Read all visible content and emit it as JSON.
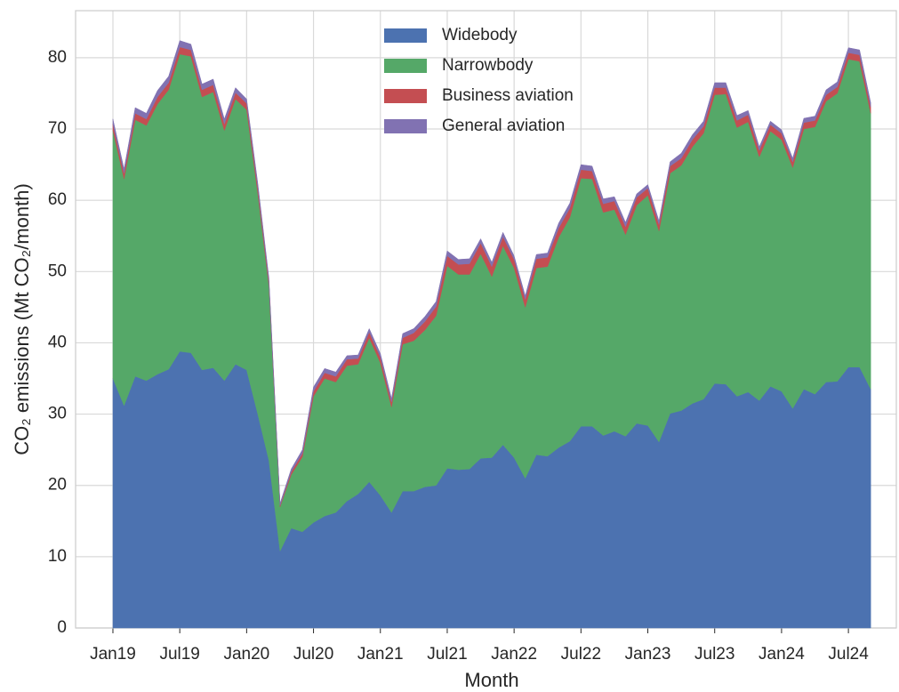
{
  "chart_data": {
    "type": "stacked_area",
    "xlabel": "Month",
    "ylabel": "CO₂ emissions (Mt CO₂/month)",
    "categories": [
      "Jan19",
      null,
      null,
      null,
      null,
      null,
      "Jul19",
      null,
      null,
      null,
      null,
      null,
      "Jan20",
      null,
      null,
      null,
      null,
      null,
      "Jul20",
      null,
      null,
      null,
      null,
      null,
      "Jan21",
      null,
      null,
      null,
      null,
      null,
      "Jul21",
      null,
      null,
      null,
      null,
      null,
      "Jan22",
      null,
      null,
      null,
      null,
      null,
      "Jul22",
      null,
      null,
      null,
      null,
      null,
      "Jan23",
      null,
      null,
      null,
      null,
      null,
      "Jul23",
      null,
      null,
      null,
      null,
      null,
      "Jan24",
      null,
      null,
      null,
      null,
      null,
      "Jul24",
      null,
      null
    ],
    "series": [
      {
        "name": "Widebody",
        "color": "#4c72b0",
        "values": [
          35,
          31.2,
          35.3,
          34.7,
          35.6,
          36.3,
          38.8,
          38.6,
          36.2,
          36.5,
          34.7,
          37,
          36.2,
          30,
          23.5,
          10.8,
          14,
          13.5,
          14.8,
          15.7,
          16.2,
          17.8,
          18.8,
          20.5,
          18.6,
          16.2,
          19.2,
          19.2,
          19.8,
          20,
          22.4,
          22.2,
          22.3,
          23.8,
          23.9,
          25.7,
          23.9,
          21,
          24.3,
          24.1,
          25.3,
          26.2,
          28.3,
          28.3,
          27,
          27.6,
          26.9,
          28.7,
          28.4,
          26.1,
          30.1,
          30.5,
          31.5,
          32.1,
          34.3,
          34.2,
          32.5,
          33.1,
          31.9,
          33.9,
          33.2,
          30.8,
          33.5,
          32.8,
          34.5,
          34.6,
          36.6,
          36.6,
          33.5
        ]
      },
      {
        "name": "Narrowbody",
        "color": "#55a868",
        "values": [
          34.8,
          31.8,
          36,
          35.8,
          37.9,
          39.2,
          41.7,
          41.6,
          38.3,
          38.7,
          35.1,
          37.2,
          36.5,
          31,
          24.5,
          6.2,
          7.5,
          10.5,
          17.7,
          19.3,
          18.3,
          19,
          18.2,
          20.2,
          18.6,
          14.8,
          20.6,
          21.1,
          22,
          23.8,
          28.4,
          27.4,
          27.3,
          28.7,
          25.4,
          27.9,
          26.6,
          24,
          26.2,
          26.6,
          29.5,
          31.4,
          34.8,
          34.7,
          31.3,
          31.1,
          28.3,
          30.6,
          32.3,
          29.6,
          33.7,
          34.4,
          36,
          37.3,
          40.5,
          40.7,
          37.7,
          37.9,
          34.2,
          35.8,
          35.3,
          33.8,
          36.5,
          37.5,
          39.4,
          40.4,
          43.2,
          42.9,
          38.7
        ]
      },
      {
        "name": "Business aviation",
        "color": "#c44e52",
        "values": [
          0.9,
          0.8,
          0.9,
          0.9,
          1.0,
          1.0,
          1.0,
          0.9,
          1.0,
          1.0,
          0.9,
          0.9,
          0.9,
          0.8,
          0.6,
          0.2,
          0.4,
          0.5,
          0.7,
          0.8,
          0.8,
          0.9,
          0.8,
          0.8,
          0.8,
          0.7,
          0.9,
          1.1,
          1.2,
          1.3,
          1.4,
          1.4,
          1.5,
          1.5,
          1.4,
          1.3,
          1.2,
          1.1,
          1.3,
          1.3,
          1.3,
          1.3,
          1.2,
          1.1,
          1.2,
          1.2,
          1.1,
          1.1,
          1.0,
          0.9,
          1.0,
          1.0,
          1.0,
          1.0,
          1.0,
          0.9,
          1.0,
          1.0,
          0.9,
          0.9,
          0.9,
          0.8,
          0.9,
          0.9,
          0.9,
          0.9,
          0.9,
          0.9,
          0.9
        ]
      },
      {
        "name": "General aviation",
        "color": "#8172b2",
        "values": [
          0.7,
          0.6,
          0.8,
          0.8,
          0.9,
          0.9,
          0.9,
          0.8,
          0.8,
          0.8,
          0.7,
          0.7,
          0.6,
          0.6,
          0.5,
          0.3,
          0.4,
          0.5,
          0.6,
          0.6,
          0.6,
          0.5,
          0.5,
          0.5,
          0.5,
          0.5,
          0.6,
          0.6,
          0.7,
          0.7,
          0.7,
          0.7,
          0.7,
          0.6,
          0.6,
          0.6,
          0.5,
          0.5,
          0.6,
          0.6,
          0.7,
          0.7,
          0.7,
          0.7,
          0.7,
          0.6,
          0.6,
          0.5,
          0.5,
          0.5,
          0.6,
          0.7,
          0.7,
          0.7,
          0.7,
          0.7,
          0.7,
          0.6,
          0.5,
          0.5,
          0.5,
          0.5,
          0.6,
          0.6,
          0.7,
          0.7,
          0.7,
          0.7,
          0.6
        ]
      }
    ],
    "ylim": [
      0,
      86.6
    ],
    "yticks": [
      0,
      10,
      20,
      30,
      40,
      50,
      60,
      70,
      80
    ],
    "grid": true,
    "legend": "upper center"
  }
}
